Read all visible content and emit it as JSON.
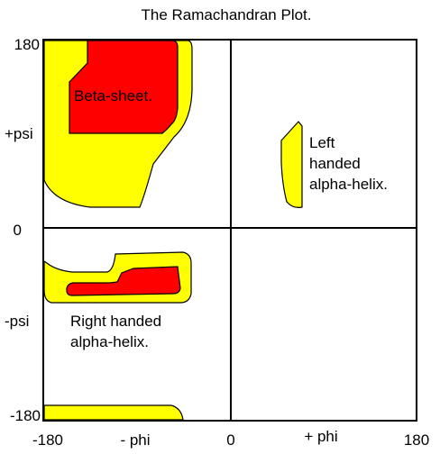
{
  "title": "The Ramachandran Plot.",
  "axes": {
    "y_ticks": {
      "top": "180",
      "middle": "0",
      "bottom": "-180"
    },
    "y_labels": {
      "positive": "+psi",
      "negative": "-psi"
    },
    "x_ticks": {
      "left": "-180",
      "middle": "0",
      "right": "180"
    },
    "x_labels": {
      "negative": "- phi",
      "positive": "+ phi"
    }
  },
  "regions": {
    "beta_sheet": {
      "label": "Beta-sheet."
    },
    "right_helix": {
      "line1": "Right handed",
      "line2": "alpha-helix."
    },
    "left_helix": {
      "line1": "Left",
      "line2": "handed",
      "line3": "alpha-helix."
    }
  },
  "colors": {
    "allowed": "#ffff00",
    "favored": "#ff0000",
    "outline": "#000000",
    "background": "#ffffff"
  }
}
